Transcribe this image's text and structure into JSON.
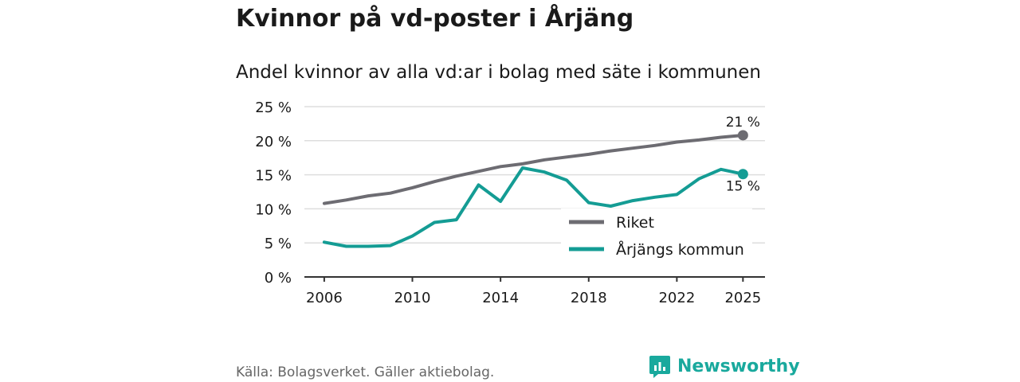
{
  "title": "Kvinnor på vd-poster i Årjäng",
  "subtitle": "Andel kvinnor av alla vd:ar i bolag med säte i kommunen",
  "source": "Källa: Bolagsverket. Gäller aktiebolag.",
  "brand": {
    "name": "Newsworthy",
    "icon": "newsworthy-logo-icon",
    "color": "#19a99d"
  },
  "colors": {
    "riket": "#6d6c72",
    "arjang": "#149c94",
    "grid": "#dddddd",
    "axis": "#333333"
  },
  "chart_data": {
    "type": "line",
    "title": "Kvinnor på vd-poster i Årjäng",
    "subtitle": "Andel kvinnor av alla vd:ar i bolag med säte i kommunen",
    "xlabel": "",
    "ylabel": "",
    "x": [
      2006,
      2007,
      2008,
      2009,
      2010,
      2011,
      2012,
      2013,
      2014,
      2015,
      2016,
      2017,
      2018,
      2019,
      2020,
      2021,
      2022,
      2023,
      2024,
      2025
    ],
    "xlim": [
      2005.1,
      2026.0
    ],
    "ylim": [
      0,
      25
    ],
    "xticks": [
      2006,
      2010,
      2014,
      2018,
      2022,
      2025
    ],
    "xtick_labels": [
      "2006",
      "2010",
      "2014",
      "2018",
      "2022",
      "2025"
    ],
    "yticks": [
      0,
      5,
      10,
      15,
      20,
      25
    ],
    "ytick_labels": [
      "0 %",
      "5 %",
      "10 %",
      "15 %",
      "20 %",
      "25 %"
    ],
    "grid": true,
    "legend_position": "bottom-right",
    "series": [
      {
        "name": "Riket",
        "color": "#6d6c72",
        "values": [
          10.8,
          11.3,
          11.9,
          12.3,
          13.1,
          14.0,
          14.8,
          15.5,
          16.2,
          16.6,
          17.2,
          17.6,
          18.0,
          18.5,
          18.9,
          19.3,
          19.8,
          20.1,
          20.5,
          20.8
        ],
        "end_label": "21 %"
      },
      {
        "name": "Årjängs kommun",
        "color": "#149c94",
        "values": [
          5.1,
          4.5,
          4.5,
          4.6,
          6.0,
          8.0,
          8.4,
          13.5,
          11.1,
          16.0,
          15.4,
          14.2,
          10.9,
          10.4,
          11.2,
          11.7,
          12.1,
          14.4,
          15.8,
          15.1
        ],
        "end_label": "15 %"
      }
    ]
  }
}
